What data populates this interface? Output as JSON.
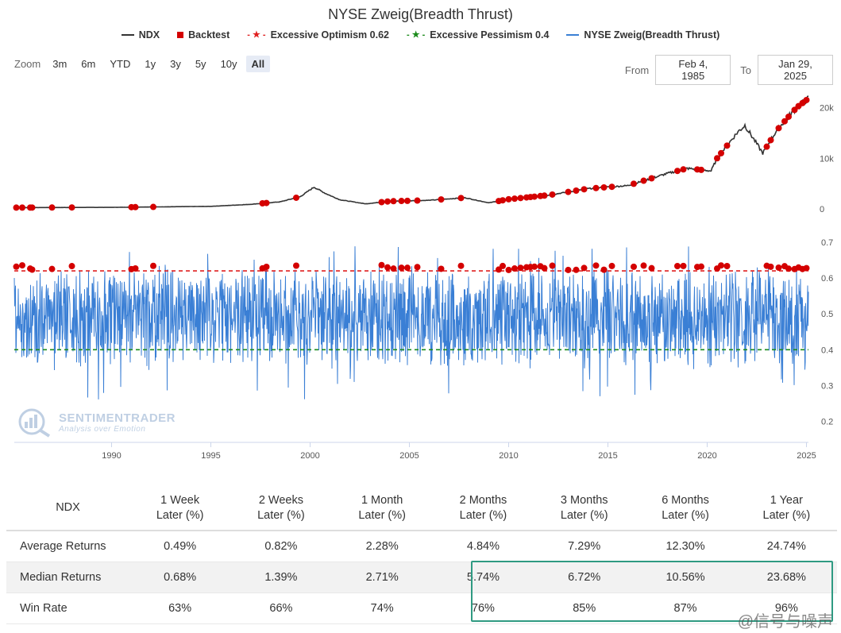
{
  "title": "NYSE Zweig(Breadth Thrust)",
  "legend": [
    {
      "label": "NDX",
      "color": "#333333",
      "icon": "line-icon"
    },
    {
      "label": "Backtest",
      "color": "#d40000",
      "icon": "square-icon"
    },
    {
      "label": "Excessive Optimism 0.62",
      "color": "#e02020",
      "icon": "star-line-icon"
    },
    {
      "label": "Excessive Pessimism 0.4",
      "color": "#1a8a1a",
      "icon": "star-line-icon"
    },
    {
      "label": "NYSE Zweig(Breadth Thrust)",
      "color": "#3a7fd5",
      "icon": "line-icon"
    }
  ],
  "zoom": {
    "label": "Zoom",
    "buttons": [
      "3m",
      "6m",
      "YTD",
      "1y",
      "3y",
      "5y",
      "10y",
      "All"
    ],
    "active": "All"
  },
  "range": {
    "from_label": "From",
    "from_value": "Feb 4, 1985",
    "to_label": "To",
    "to_value": "Jan 29, 2025"
  },
  "watermark": {
    "line1": "SENTIMENTRADER",
    "line2": "Analysis over Emotion"
  },
  "signature": "@信号与噪声",
  "colors": {
    "ndx": "#333333",
    "backtest": "#d40000",
    "optimism": "#e02020",
    "pessimism": "#1a8a1a",
    "zweig": "#3a7fd5"
  },
  "chart_data": {
    "type": "line",
    "x_ticks": [
      "1990",
      "1995",
      "2000",
      "2005",
      "2010",
      "2015",
      "2020",
      "2025"
    ],
    "x_range": [
      1985.1,
      2025.1
    ],
    "panels": [
      {
        "name": "NDX",
        "y_ticks": [
          "20k",
          "10k",
          "0"
        ],
        "y_range": [
          0,
          24000
        ],
        "series": [
          {
            "name": "NDX",
            "x": [
              1985.1,
              1990,
              1995,
              1997,
              1998.5,
              1999.5,
              2000.2,
              2000.8,
              2001.5,
              2002.8,
              2004,
              2006,
              2007.8,
              2009.0,
              2010,
              2012,
              2014,
              2016,
              2018,
              2019,
              2020.2,
              2020.5,
              2021.5,
              2021.9,
              2022.8,
              2023.5,
              2024.5,
              2025.1
            ],
            "y": [
              250,
              300,
              500,
              900,
              1400,
              2400,
              4300,
              3000,
              1800,
              1000,
              1500,
              1700,
              2200,
              1200,
              1900,
              2700,
              4000,
              4600,
              7000,
              8000,
              7500,
              10000,
              15000,
              16500,
              11000,
              15500,
              20000,
              21800
            ]
          }
        ],
        "backtest_x": [
          1985.2,
          1985.5,
          1985.9,
          1986.0,
          1987.0,
          1988.0,
          1991.0,
          1991.2,
          1992.1,
          1997.6,
          1997.8,
          1999.3,
          2003.6,
          2003.9,
          2004.2,
          2004.6,
          2004.9,
          2005.4,
          2006.6,
          2007.6,
          2009.5,
          2009.7,
          2010.0,
          2010.3,
          2010.6,
          2010.9,
          2011.1,
          2011.3,
          2011.6,
          2011.8,
          2012.2,
          2013.0,
          2013.4,
          2013.8,
          2014.4,
          2014.8,
          2015.2,
          2016.3,
          2016.8,
          2017.2,
          2018.5,
          2018.8,
          2019.5,
          2019.7,
          2020.5,
          2020.7,
          2021.0,
          2023.0,
          2023.2,
          2023.6,
          2023.9,
          2024.1,
          2024.4,
          2024.6,
          2024.8,
          2025.0
        ]
      },
      {
        "name": "NYSE Zweig(Breadth Thrust)",
        "y_ticks": [
          "0.7",
          "0.6",
          "0.5",
          "0.4",
          "0.3",
          "0.2"
        ],
        "y_range": [
          0.19,
          0.72
        ],
        "thresholds": {
          "optimism": 0.62,
          "pessimism": 0.4
        },
        "series_note": "weekly oscillation between ~0.25 and ~0.70",
        "backtest_x": [
          1985.2,
          1985.5,
          1985.9,
          1986.0,
          1987.0,
          1988.0,
          1991.0,
          1991.2,
          1992.1,
          1997.6,
          1997.8,
          1999.3,
          2003.6,
          2003.9,
          2004.2,
          2004.6,
          2004.9,
          2005.4,
          2006.6,
          2007.6,
          2009.5,
          2009.7,
          2010.0,
          2010.3,
          2010.6,
          2010.9,
          2011.1,
          2011.3,
          2011.6,
          2011.8,
          2012.2,
          2013.0,
          2013.4,
          2013.8,
          2014.4,
          2014.8,
          2015.2,
          2016.3,
          2016.8,
          2017.2,
          2018.5,
          2018.8,
          2019.5,
          2019.7,
          2020.5,
          2020.7,
          2021.0,
          2023.0,
          2023.2,
          2023.6,
          2023.9,
          2024.1,
          2024.4,
          2024.6,
          2024.8,
          2025.0
        ]
      }
    ]
  },
  "table": {
    "headers": [
      {
        "l1": "NDX",
        "l2": ""
      },
      {
        "l1": "1 Week",
        "l2": "Later (%)"
      },
      {
        "l1": "2 Weeks",
        "l2": "Later (%)"
      },
      {
        "l1": "1 Month",
        "l2": "Later (%)"
      },
      {
        "l1": "2 Months",
        "l2": "Later (%)"
      },
      {
        "l1": "3 Months",
        "l2": "Later (%)"
      },
      {
        "l1": "6 Months",
        "l2": "Later (%)"
      },
      {
        "l1": "1 Year",
        "l2": "Later (%)"
      }
    ],
    "rows": [
      {
        "label": "Average Returns",
        "values": [
          "0.49%",
          "0.82%",
          "2.28%",
          "4.84%",
          "7.29%",
          "12.30%",
          "24.74%"
        ]
      },
      {
        "label": "Median Returns",
        "values": [
          "0.68%",
          "1.39%",
          "2.71%",
          "5.74%",
          "6.72%",
          "10.56%",
          "23.68%"
        ]
      },
      {
        "label": "Win Rate",
        "values": [
          "63%",
          "66%",
          "74%",
          "76%",
          "85%",
          "87%",
          "96%"
        ]
      }
    ]
  }
}
